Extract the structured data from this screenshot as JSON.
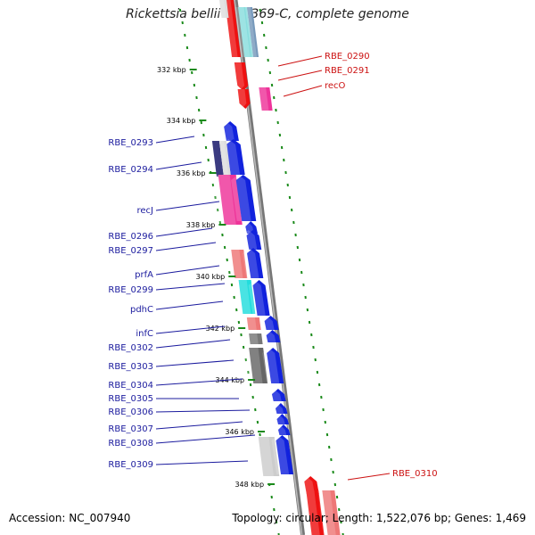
{
  "title": "Rickettsia bellii RML369-C, complete genome",
  "footer": {
    "accession": "Accession: NC_007940",
    "topology": "Topology: circular; Length: 1,522,076 bp; Genes: 1,469"
  },
  "colors": {
    "backbone": "#888888",
    "tick": "#1a8a1a",
    "label_left": "#1b1b9e",
    "label_right": "#cc1111"
  },
  "ticks": [
    "332 kbp",
    "334 kbp",
    "336 kbp",
    "338 kbp",
    "340 kbp",
    "342 kbp",
    "344 kbp",
    "346 kbp",
    "348 kbp"
  ],
  "genes_left": [
    "RBE_0293",
    "RBE_0294",
    "recJ",
    "RBE_0296",
    "RBE_0297",
    "prfA",
    "RBE_0299",
    "pdhC",
    "infC",
    "RBE_0302",
    "RBE_0303",
    "RBE_0304",
    "RBE_0305",
    "RBE_0306",
    "RBE_0307",
    "RBE_0308",
    "RBE_0309"
  ],
  "genes_right": [
    "RBE_0290",
    "RBE_0291",
    "recO",
    "RBE_0310"
  ]
}
